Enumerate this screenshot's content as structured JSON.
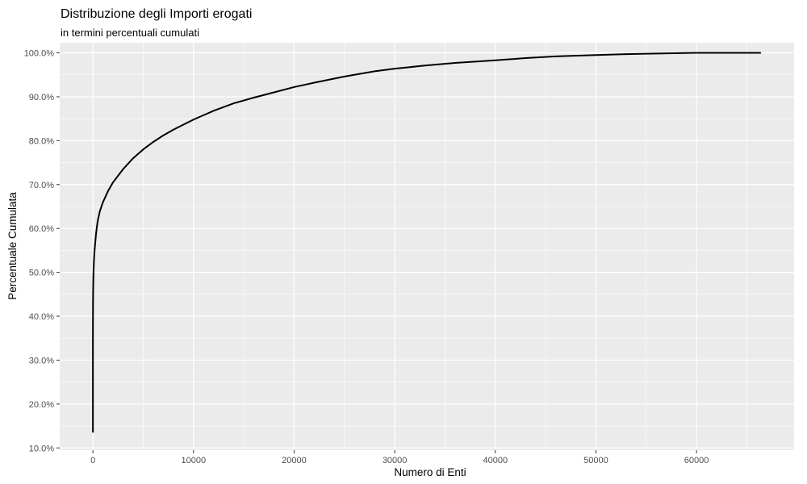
{
  "chart_data": {
    "type": "line",
    "title": "Distribuzione degli Importi erogati",
    "subtitle": "in termini percentuali cumulati",
    "xlabel": "Numero di Enti",
    "ylabel": "Percentuale Cumulata",
    "xlim": [
      -3300,
      69700
    ],
    "ylim": [
      9.5,
      102.3
    ],
    "x_ticks": [
      0,
      10000,
      20000,
      30000,
      40000,
      50000,
      60000
    ],
    "x_tick_labels": [
      "0",
      "10000",
      "20000",
      "30000",
      "40000",
      "50000",
      "60000"
    ],
    "y_ticks": [
      10,
      20,
      30,
      40,
      50,
      60,
      70,
      80,
      90,
      100
    ],
    "y_tick_labels": [
      "10.0%",
      "20.0%",
      "30.0%",
      "40.0%",
      "50.0%",
      "60.0%",
      "70.0%",
      "80.0%",
      "90.0%",
      "100.0%"
    ],
    "grid": true,
    "series": [
      {
        "color": "#000000",
        "x": [
          0,
          0,
          10,
          30,
          60,
          100,
          150,
          200,
          300,
          400,
          500,
          700,
          1000,
          1500,
          2000,
          2500,
          3000,
          4000,
          5000,
          6000,
          7000,
          8000,
          10000,
          12000,
          14000,
          16000,
          18000,
          20000,
          22000,
          25000,
          28000,
          30000,
          33000,
          36000,
          40000,
          43000,
          46000,
          50000,
          53000,
          56000,
          60000,
          63000,
          66400
        ],
        "y": [
          13.5,
          35,
          43,
          47,
          50,
          52.5,
          54.5,
          56,
          58.5,
          60.5,
          62,
          64,
          66,
          68.5,
          70.5,
          72,
          73.5,
          76,
          78,
          79.7,
          81.2,
          82.5,
          84.8,
          86.8,
          88.5,
          89.8,
          91,
          92.2,
          93.2,
          94.6,
          95.8,
          96.4,
          97.1,
          97.7,
          98.3,
          98.8,
          99.2,
          99.5,
          99.7,
          99.85,
          100,
          100,
          100
        ]
      }
    ]
  }
}
